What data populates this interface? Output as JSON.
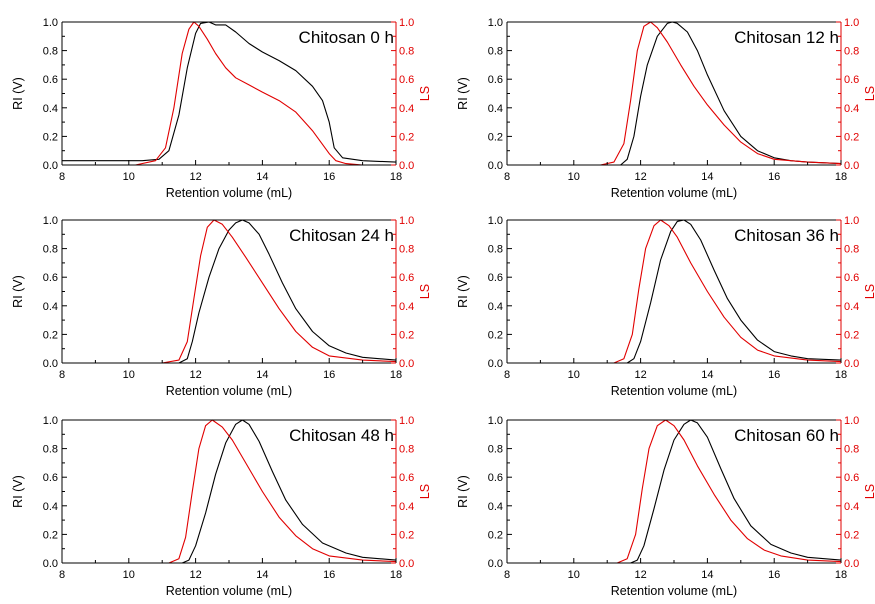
{
  "chart_data": [
    {
      "type": "line",
      "title": "Chitosan 0 h",
      "xlabel": "Retention volume (mL)",
      "ylabel": "RI (V)",
      "y2label": "LS",
      "xlim": [
        8,
        18
      ],
      "ylim": [
        0,
        1
      ],
      "y2lim": [
        0,
        1
      ],
      "xticks": [
        "8",
        "10",
        "12",
        "14",
        "16",
        "18"
      ],
      "yticks": [
        "0.0",
        "0.2",
        "0.4",
        "0.6",
        "0.8",
        "1.0"
      ],
      "series": [
        {
          "name": "RI",
          "color": "#000000",
          "axis": "left",
          "x": [
            8,
            10.4,
            10.9,
            11.2,
            11.5,
            11.75,
            12.0,
            12.15,
            12.4,
            12.6,
            12.9,
            13.2,
            13.6,
            14.0,
            14.5,
            15.0,
            15.5,
            15.8,
            16.0,
            16.15,
            16.4,
            17.0,
            18
          ],
          "y": [
            0.03,
            0.03,
            0.04,
            0.1,
            0.35,
            0.68,
            0.92,
            0.99,
            1.0,
            0.98,
            0.98,
            0.93,
            0.85,
            0.79,
            0.73,
            0.66,
            0.55,
            0.45,
            0.3,
            0.12,
            0.05,
            0.03,
            0.02
          ]
        },
        {
          "name": "LS",
          "color": "#e10000",
          "axis": "right",
          "x": [
            8,
            10.2,
            10.8,
            11.1,
            11.35,
            11.6,
            11.8,
            11.95,
            12.1,
            12.35,
            12.6,
            12.9,
            13.2,
            13.6,
            14.0,
            14.5,
            15.0,
            15.5,
            16.0,
            16.2,
            16.5,
            17.0,
            18
          ],
          "y": [
            0.0,
            0.0,
            0.03,
            0.12,
            0.4,
            0.78,
            0.95,
            1.0,
            0.97,
            0.88,
            0.78,
            0.68,
            0.61,
            0.56,
            0.51,
            0.45,
            0.37,
            0.24,
            0.08,
            0.03,
            0.01,
            0.0,
            0.0
          ]
        }
      ]
    },
    {
      "type": "line",
      "title": "Chitosan 12 h",
      "xlabel": "Retention volume (mL)",
      "ylabel": "RI (V)",
      "y2label": "LS",
      "xlim": [
        8,
        18
      ],
      "ylim": [
        0,
        1
      ],
      "y2lim": [
        0,
        1
      ],
      "xticks": [
        "8",
        "10",
        "12",
        "14",
        "16",
        "18"
      ],
      "yticks": [
        "0.0",
        "0.2",
        "0.4",
        "0.6",
        "0.8",
        "1.0"
      ],
      "series": [
        {
          "name": "RI",
          "color": "#000000",
          "axis": "left",
          "x": [
            8,
            11.0,
            11.4,
            11.6,
            11.8,
            12.0,
            12.2,
            12.5,
            12.8,
            12.95,
            13.1,
            13.4,
            13.7,
            14.0,
            14.5,
            15.0,
            15.5,
            16.0,
            16.5,
            17.0,
            18
          ],
          "y": [
            0.0,
            0.0,
            0.0,
            0.04,
            0.2,
            0.48,
            0.7,
            0.9,
            0.99,
            1.0,
            0.99,
            0.93,
            0.8,
            0.63,
            0.38,
            0.2,
            0.1,
            0.05,
            0.03,
            0.02,
            0.01
          ]
        },
        {
          "name": "LS",
          "color": "#e10000",
          "axis": "right",
          "x": [
            8,
            10.8,
            11.2,
            11.5,
            11.7,
            11.9,
            12.1,
            12.3,
            12.5,
            12.8,
            13.2,
            13.6,
            14.0,
            14.5,
            15.0,
            15.5,
            16.0,
            17.0,
            18
          ],
          "y": [
            0.0,
            0.0,
            0.02,
            0.15,
            0.45,
            0.8,
            0.97,
            1.0,
            0.96,
            0.86,
            0.7,
            0.55,
            0.42,
            0.28,
            0.16,
            0.08,
            0.04,
            0.02,
            0.01
          ]
        }
      ]
    },
    {
      "type": "line",
      "title": "Chitosan 24 h",
      "xlabel": "Retention volume (mL)",
      "ylabel": "RI (V)",
      "y2label": "LS",
      "xlim": [
        8,
        18
      ],
      "ylim": [
        0,
        1
      ],
      "y2lim": [
        0,
        1
      ],
      "xticks": [
        "8",
        "10",
        "12",
        "14",
        "16",
        "18"
      ],
      "yticks": [
        "0.0",
        "0.2",
        "0.4",
        "0.6",
        "0.8",
        "1.0"
      ],
      "series": [
        {
          "name": "RI",
          "color": "#000000",
          "axis": "left",
          "x": [
            8,
            11.5,
            11.75,
            11.9,
            12.1,
            12.4,
            12.7,
            13.0,
            13.2,
            13.4,
            13.6,
            13.9,
            14.2,
            14.6,
            15.0,
            15.5,
            16.0,
            16.5,
            17.0,
            18
          ],
          "y": [
            0.0,
            0.0,
            0.03,
            0.15,
            0.35,
            0.6,
            0.8,
            0.93,
            0.98,
            1.0,
            0.98,
            0.9,
            0.76,
            0.56,
            0.38,
            0.22,
            0.12,
            0.07,
            0.04,
            0.02
          ]
        },
        {
          "name": "LS",
          "color": "#e10000",
          "axis": "right",
          "x": [
            8,
            11.0,
            11.5,
            11.75,
            11.95,
            12.15,
            12.35,
            12.55,
            12.8,
            13.1,
            13.5,
            14.0,
            14.5,
            15.0,
            15.5,
            16.0,
            17.0,
            18
          ],
          "y": [
            0.0,
            0.0,
            0.02,
            0.15,
            0.45,
            0.75,
            0.95,
            1.0,
            0.97,
            0.88,
            0.74,
            0.56,
            0.38,
            0.22,
            0.11,
            0.05,
            0.02,
            0.01
          ]
        }
      ]
    },
    {
      "type": "line",
      "title": "Chitosan 36 h",
      "xlabel": "Retention volume (mL)",
      "ylabel": "RI (V)",
      "y2label": "LS",
      "xlim": [
        8,
        18
      ],
      "ylim": [
        0,
        1
      ],
      "y2lim": [
        0,
        1
      ],
      "xticks": [
        "8",
        "10",
        "12",
        "14",
        "16",
        "18"
      ],
      "yticks": [
        "0.0",
        "0.2",
        "0.4",
        "0.6",
        "0.8",
        "1.0"
      ],
      "series": [
        {
          "name": "RI",
          "color": "#000000",
          "axis": "left",
          "x": [
            8,
            11.6,
            11.8,
            12.0,
            12.3,
            12.6,
            12.9,
            13.1,
            13.3,
            13.5,
            13.8,
            14.2,
            14.6,
            15.0,
            15.5,
            16.0,
            16.5,
            17.0,
            18
          ],
          "y": [
            0.0,
            0.0,
            0.03,
            0.15,
            0.42,
            0.72,
            0.92,
            0.99,
            1.0,
            0.97,
            0.86,
            0.65,
            0.45,
            0.3,
            0.16,
            0.08,
            0.05,
            0.03,
            0.02
          ]
        },
        {
          "name": "LS",
          "color": "#e10000",
          "axis": "right",
          "x": [
            8,
            11.2,
            11.5,
            11.75,
            11.95,
            12.15,
            12.4,
            12.6,
            12.85,
            13.1,
            13.5,
            14.0,
            14.5,
            15.0,
            15.5,
            16.0,
            17.0,
            18
          ],
          "y": [
            0.0,
            0.0,
            0.03,
            0.2,
            0.52,
            0.8,
            0.96,
            1.0,
            0.96,
            0.88,
            0.7,
            0.5,
            0.32,
            0.18,
            0.09,
            0.05,
            0.02,
            0.01
          ]
        }
      ]
    },
    {
      "type": "line",
      "title": "Chitosan 48 h",
      "xlabel": "Retention volume (mL)",
      "ylabel": "RI (V)",
      "y2label": "LS",
      "xlim": [
        8,
        18
      ],
      "ylim": [
        0,
        1
      ],
      "y2lim": [
        0,
        1
      ],
      "xticks": [
        "8",
        "10",
        "12",
        "14",
        "16",
        "18"
      ],
      "yticks": [
        "0.0",
        "0.2",
        "0.4",
        "0.6",
        "0.8",
        "1.0"
      ],
      "series": [
        {
          "name": "RI",
          "color": "#000000",
          "axis": "left",
          "x": [
            8,
            11.6,
            11.8,
            12.0,
            12.3,
            12.6,
            12.9,
            13.2,
            13.4,
            13.6,
            13.9,
            14.3,
            14.7,
            15.2,
            15.8,
            16.5,
            17.0,
            18
          ],
          "y": [
            0.0,
            0.0,
            0.02,
            0.12,
            0.35,
            0.62,
            0.84,
            0.97,
            1.0,
            0.97,
            0.85,
            0.64,
            0.44,
            0.27,
            0.14,
            0.07,
            0.04,
            0.02
          ]
        },
        {
          "name": "LS",
          "color": "#e10000",
          "axis": "right",
          "x": [
            8,
            11.2,
            11.5,
            11.7,
            11.9,
            12.1,
            12.3,
            12.5,
            12.8,
            13.1,
            13.5,
            14.0,
            14.5,
            15.0,
            15.5,
            16.0,
            17.0,
            18
          ],
          "y": [
            0.0,
            0.0,
            0.03,
            0.18,
            0.5,
            0.8,
            0.96,
            1.0,
            0.95,
            0.86,
            0.7,
            0.5,
            0.32,
            0.19,
            0.1,
            0.05,
            0.02,
            0.01
          ]
        }
      ]
    },
    {
      "type": "line",
      "title": "Chitosan 60 h",
      "xlabel": "Retention volume (mL)",
      "ylabel": "RI (V)",
      "y2label": "LS",
      "xlim": [
        8,
        18
      ],
      "ylim": [
        0,
        1
      ],
      "y2lim": [
        0,
        1
      ],
      "xticks": [
        "8",
        "10",
        "12",
        "14",
        "16",
        "18"
      ],
      "yticks": [
        "0.0",
        "0.2",
        "0.4",
        "0.6",
        "0.8",
        "1.0"
      ],
      "series": [
        {
          "name": "RI",
          "color": "#000000",
          "axis": "left",
          "x": [
            8,
            11.7,
            11.9,
            12.1,
            12.4,
            12.7,
            13.0,
            13.3,
            13.5,
            13.7,
            14.0,
            14.4,
            14.8,
            15.3,
            15.9,
            16.5,
            17.0,
            18
          ],
          "y": [
            0.0,
            0.0,
            0.02,
            0.12,
            0.38,
            0.65,
            0.86,
            0.97,
            1.0,
            0.98,
            0.88,
            0.66,
            0.45,
            0.26,
            0.13,
            0.07,
            0.04,
            0.02
          ]
        },
        {
          "name": "LS",
          "color": "#e10000",
          "axis": "right",
          "x": [
            8,
            11.3,
            11.6,
            11.85,
            12.05,
            12.25,
            12.5,
            12.75,
            13.0,
            13.3,
            13.7,
            14.2,
            14.7,
            15.2,
            15.7,
            16.2,
            17.0,
            18
          ],
          "y": [
            0.0,
            0.0,
            0.03,
            0.2,
            0.52,
            0.8,
            0.96,
            1.0,
            0.96,
            0.86,
            0.68,
            0.48,
            0.3,
            0.17,
            0.09,
            0.05,
            0.02,
            0.01
          ]
        }
      ]
    }
  ]
}
